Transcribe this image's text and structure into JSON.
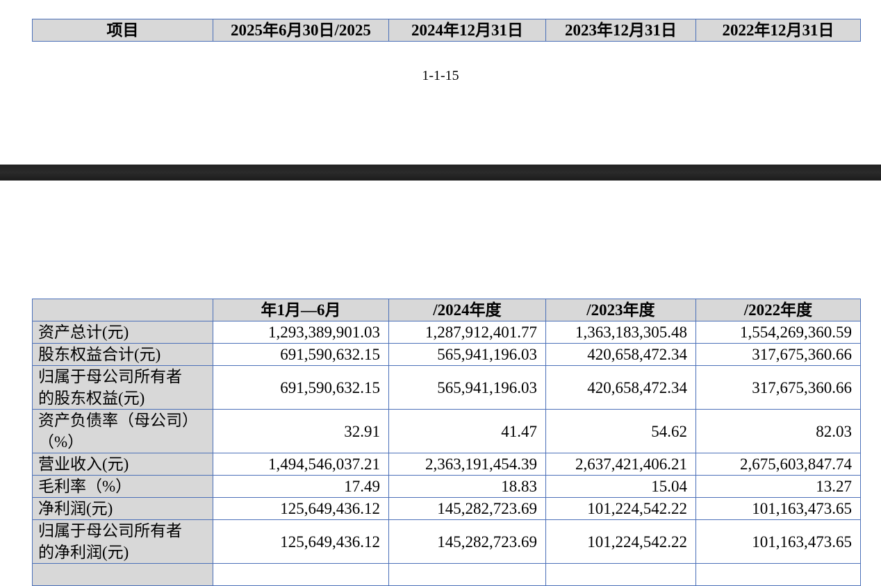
{
  "top_table": {
    "headers": [
      "项目",
      "2025年6月30日/2025",
      "2024年12月31日",
      "2023年12月31日",
      "2022年12月31日"
    ]
  },
  "page_number": "1-1-15",
  "bottom_table": {
    "headers": [
      "",
      "年1月—6月",
      "/2024年度",
      "/2023年度",
      "/2022年度"
    ],
    "rows": [
      {
        "label": "资产总计(元)",
        "values": [
          "1,293,389,901.03",
          "1,287,912,401.77",
          "1,363,183,305.48",
          "1,554,269,360.59"
        ]
      },
      {
        "label": "股东权益合计(元)",
        "values": [
          "691,590,632.15",
          "565,941,196.03",
          "420,658,472.34",
          "317,675,360.66"
        ]
      },
      {
        "label": "归属于母公司所有者的股东权益(元)",
        "label_lines": [
          "归属于母公司所有者",
          "的股东权益(元)"
        ],
        "values": [
          "691,590,632.15",
          "565,941,196.03",
          "420,658,472.34",
          "317,675,360.66"
        ]
      },
      {
        "label": "资产负债率（母公司）（%）",
        "label_lines": [
          "资产负债率（母公司）",
          "（%）"
        ],
        "values": [
          "32.91",
          "41.47",
          "54.62",
          "82.03"
        ]
      },
      {
        "label": "营业收入(元)",
        "values": [
          "1,494,546,037.21",
          "2,363,191,454.39",
          "2,637,421,406.21",
          "2,675,603,847.74"
        ]
      },
      {
        "label": "毛利率（%）",
        "values": [
          "17.49",
          "18.83",
          "15.04",
          "13.27"
        ]
      },
      {
        "label": "净利润(元)",
        "values": [
          "125,649,436.12",
          "145,282,723.69",
          "101,224,542.22",
          "101,163,473.65"
        ]
      },
      {
        "label": "归属于母公司所有者的净利润(元)",
        "label_lines": [
          "归属于母公司所有者",
          "的净利润(元)"
        ],
        "values": [
          "125,649,436.12",
          "145,282,723.69",
          "101,224,542.22",
          "101,163,473.65"
        ]
      }
    ]
  }
}
